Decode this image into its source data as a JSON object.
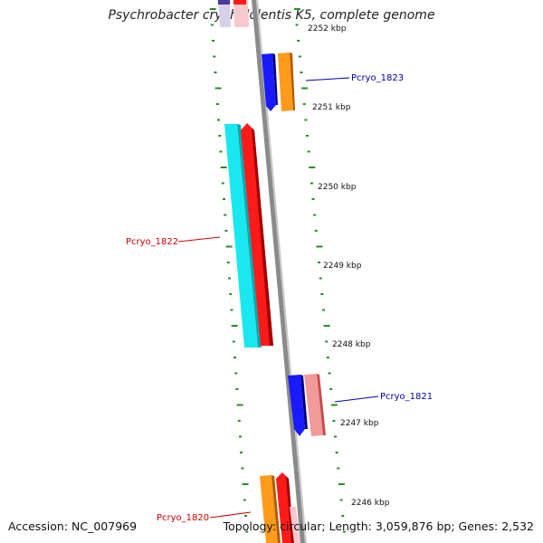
{
  "title": "Psychrobacter cryohalolentis K5, complete genome",
  "accession": "Accession: NC_007969",
  "summary": "Topology: circular; Length: 3,059,876 bp; Genes: 2,532",
  "colors": {
    "backbone": "#8a8a8a",
    "tick": "#2a8a2a",
    "label_red": "#cc0000",
    "label_blue": "#0000aa",
    "blue": "#1a1aff",
    "orange": "#ff9a1a",
    "cyan": "#1ae8f0",
    "red": "#ff1a1a",
    "pink": "#f29a9a",
    "navy": "#4a3a9a",
    "lavender": "#d8d0e8",
    "lightpink": "#f7c9cf"
  },
  "kbp_labels": [
    "2252 kbp",
    "2251 kbp",
    "2250 kbp",
    "2249 kbp",
    "2248 kbp",
    "2247 kbp",
    "2246 kbp"
  ],
  "genes": [
    {
      "label": "Pcryo_1823",
      "side": "right"
    },
    {
      "label": "Pcryo_1822",
      "side": "left"
    },
    {
      "label": "Pcryo_1821",
      "side": "right"
    },
    {
      "label": "Pcryo_1820",
      "side": "left"
    }
  ]
}
